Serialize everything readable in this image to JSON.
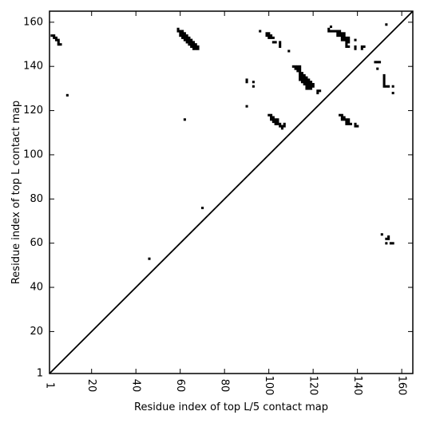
{
  "chart_data": {
    "type": "heatmap",
    "title": "",
    "xlabel": "Residue index of top L/5 contact map",
    "ylabel": "Residue index of top L contact map",
    "xlim": [
      1,
      165
    ],
    "ylim": [
      1,
      165
    ],
    "xticks": [
      {
        "value": 1,
        "label": "1"
      },
      {
        "value": 20,
        "label": "20"
      },
      {
        "value": 40,
        "label": "40"
      },
      {
        "value": 60,
        "label": "60"
      },
      {
        "value": 80,
        "label": "80"
      },
      {
        "value": 100,
        "label": "100"
      },
      {
        "value": 120,
        "label": "120"
      },
      {
        "value": 140,
        "label": "140"
      },
      {
        "value": 160,
        "label": "160"
      }
    ],
    "yticks": [
      {
        "value": 1,
        "label": "1"
      },
      {
        "value": 20,
        "label": "20"
      },
      {
        "value": 40,
        "label": "40"
      },
      {
        "value": 60,
        "label": "60"
      },
      {
        "value": 80,
        "label": "80"
      },
      {
        "value": 100,
        "label": "100"
      },
      {
        "value": 120,
        "label": "120"
      },
      {
        "value": 140,
        "label": "140"
      },
      {
        "value": 160,
        "label": "160"
      }
    ],
    "diagonal": true,
    "grid": false,
    "color": "#000000",
    "contacts": [
      [
        2,
        154
      ],
      [
        3,
        154
      ],
      [
        3,
        153
      ],
      [
        4,
        153
      ],
      [
        4,
        152
      ],
      [
        5,
        152
      ],
      [
        5,
        151
      ],
      [
        5,
        150
      ],
      [
        6,
        150
      ],
      [
        9,
        127
      ],
      [
        46,
        53
      ],
      [
        62,
        116
      ],
      [
        70,
        76
      ],
      [
        59,
        157
      ],
      [
        59,
        156
      ],
      [
        60,
        156
      ],
      [
        60,
        155
      ],
      [
        61,
        156
      ],
      [
        61,
        155
      ],
      [
        60,
        154
      ],
      [
        61,
        154
      ],
      [
        62,
        154
      ],
      [
        62,
        155
      ],
      [
        61,
        153
      ],
      [
        62,
        153
      ],
      [
        63,
        153
      ],
      [
        63,
        154
      ],
      [
        62,
        152
      ],
      [
        63,
        152
      ],
      [
        64,
        152
      ],
      [
        64,
        153
      ],
      [
        63,
        151
      ],
      [
        64,
        151
      ],
      [
        65,
        151
      ],
      [
        65,
        152
      ],
      [
        64,
        150
      ],
      [
        65,
        150
      ],
      [
        66,
        150
      ],
      [
        66,
        151
      ],
      [
        65,
        149
      ],
      [
        66,
        149
      ],
      [
        67,
        149
      ],
      [
        67,
        150
      ],
      [
        66,
        148
      ],
      [
        67,
        148
      ],
      [
        68,
        148
      ],
      [
        68,
        149
      ],
      [
        90,
        134
      ],
      [
        90,
        133
      ],
      [
        90,
        122
      ],
      [
        93,
        133
      ],
      [
        93,
        131
      ],
      [
        96,
        156
      ],
      [
        99,
        155
      ],
      [
        100,
        155
      ],
      [
        99,
        154
      ],
      [
        100,
        154
      ],
      [
        101,
        154
      ],
      [
        100,
        153
      ],
      [
        101,
        153
      ],
      [
        102,
        153
      ],
      [
        102,
        151
      ],
      [
        103,
        151
      ],
      [
        105,
        151
      ],
      [
        105,
        150
      ],
      [
        105,
        149
      ],
      [
        109,
        147
      ],
      [
        100,
        118
      ],
      [
        101,
        118
      ],
      [
        101,
        117
      ],
      [
        102,
        117
      ],
      [
        101,
        116
      ],
      [
        102,
        116
      ],
      [
        103,
        116
      ],
      [
        104,
        116
      ],
      [
        102,
        115
      ],
      [
        103,
        115
      ],
      [
        104,
        115
      ],
      [
        103,
        114
      ],
      [
        104,
        114
      ],
      [
        105,
        114
      ],
      [
        105,
        113
      ],
      [
        106,
        113
      ],
      [
        107,
        113
      ],
      [
        107,
        114
      ],
      [
        106,
        112
      ],
      [
        111,
        140
      ],
      [
        112,
        140
      ],
      [
        113,
        140
      ],
      [
        114,
        140
      ],
      [
        112,
        139
      ],
      [
        113,
        139
      ],
      [
        114,
        139
      ],
      [
        113,
        138
      ],
      [
        114,
        138
      ],
      [
        114,
        137
      ],
      [
        115,
        137
      ],
      [
        114,
        136
      ],
      [
        115,
        136
      ],
      [
        116,
        136
      ],
      [
        114,
        135
      ],
      [
        115,
        135
      ],
      [
        116,
        135
      ],
      [
        117,
        135
      ],
      [
        114,
        134
      ],
      [
        115,
        134
      ],
      [
        116,
        134
      ],
      [
        117,
        134
      ],
      [
        118,
        134
      ],
      [
        115,
        133
      ],
      [
        116,
        133
      ],
      [
        117,
        133
      ],
      [
        118,
        133
      ],
      [
        119,
        133
      ],
      [
        116,
        132
      ],
      [
        117,
        132
      ],
      [
        118,
        132
      ],
      [
        119,
        132
      ],
      [
        120,
        132
      ],
      [
        117,
        131
      ],
      [
        118,
        131
      ],
      [
        119,
        131
      ],
      [
        120,
        131
      ],
      [
        117,
        130
      ],
      [
        118,
        130
      ],
      [
        119,
        130
      ],
      [
        122,
        129
      ],
      [
        123,
        129
      ],
      [
        122,
        128
      ],
      [
        127,
        157
      ],
      [
        128,
        158
      ],
      [
        127,
        156
      ],
      [
        128,
        156
      ],
      [
        129,
        156
      ],
      [
        130,
        156
      ],
      [
        131,
        156
      ],
      [
        132,
        156
      ],
      [
        131,
        155
      ],
      [
        132,
        155
      ],
      [
        133,
        155
      ],
      [
        134,
        155
      ],
      [
        131,
        154
      ],
      [
        132,
        154
      ],
      [
        133,
        154
      ],
      [
        134,
        154
      ],
      [
        133,
        153
      ],
      [
        134,
        153
      ],
      [
        135,
        153
      ],
      [
        136,
        153
      ],
      [
        133,
        152
      ],
      [
        134,
        152
      ],
      [
        135,
        152
      ],
      [
        136,
        152
      ],
      [
        135,
        151
      ],
      [
        136,
        151
      ],
      [
        135,
        150
      ],
      [
        135,
        149
      ],
      [
        136,
        149
      ],
      [
        139,
        152
      ],
      [
        139,
        149
      ],
      [
        139,
        148
      ],
      [
        142,
        149
      ],
      [
        143,
        149
      ],
      [
        142,
        148
      ],
      [
        153,
        159
      ],
      [
        132,
        118
      ],
      [
        133,
        118
      ],
      [
        133,
        117
      ],
      [
        134,
        117
      ],
      [
        133,
        116
      ],
      [
        134,
        116
      ],
      [
        135,
        116
      ],
      [
        136,
        116
      ],
      [
        135,
        115
      ],
      [
        136,
        115
      ],
      [
        135,
        114
      ],
      [
        136,
        114
      ],
      [
        137,
        114
      ],
      [
        139,
        114
      ],
      [
        139,
        113
      ],
      [
        140,
        113
      ],
      [
        148,
        142
      ],
      [
        149,
        142
      ],
      [
        150,
        142
      ],
      [
        149,
        139
      ],
      [
        152,
        136
      ],
      [
        152,
        135
      ],
      [
        152,
        134
      ],
      [
        152,
        133
      ],
      [
        152,
        132
      ],
      [
        152,
        131
      ],
      [
        153,
        131
      ],
      [
        154,
        131
      ],
      [
        156,
        131
      ],
      [
        156,
        128
      ],
      [
        151,
        64
      ],
      [
        153,
        62
      ],
      [
        154,
        62
      ],
      [
        154,
        63
      ],
      [
        153,
        60
      ],
      [
        155,
        60
      ],
      [
        156,
        60
      ]
    ]
  }
}
